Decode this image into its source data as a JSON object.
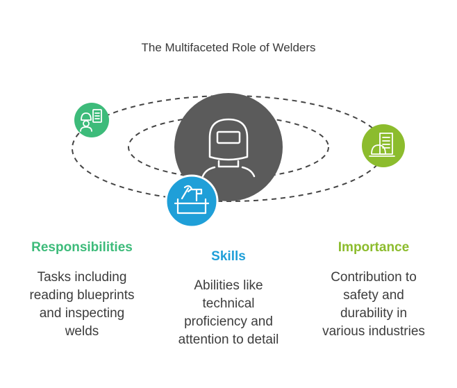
{
  "title": "The Multifaceted Role of Welders",
  "colors": {
    "center": "#5b5b5b",
    "responsibilities": "#3dbb7a",
    "skills": "#1f9fd8",
    "importance": "#8cbc2d",
    "orbit": "#444444"
  },
  "icons": {
    "center": "welder-mask-icon",
    "responsibilities": "worker-checklist-icon",
    "skills": "toolbox-icon",
    "importance": "industrial-building-icon"
  },
  "columns": {
    "responsibilities": {
      "heading": "Responsibilities",
      "lines": [
        "Tasks including",
        "reading blueprints",
        "and inspecting",
        "welds"
      ]
    },
    "skills": {
      "heading": "Skills",
      "lines": [
        "Abilities like",
        "technical",
        "proficiency and",
        "attention to detail"
      ]
    },
    "importance": {
      "heading": "Importance",
      "lines": [
        "Contribution to",
        "safety and",
        "durability in",
        "various industries"
      ]
    }
  }
}
